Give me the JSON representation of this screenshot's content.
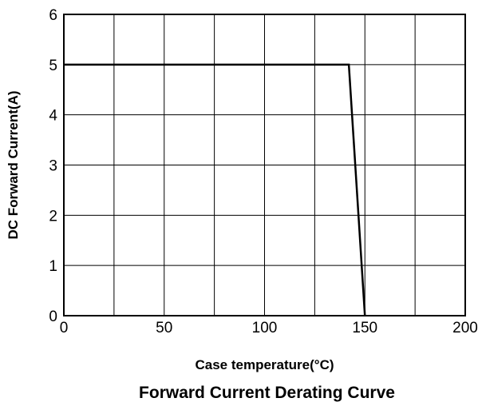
{
  "chart_data": {
    "type": "line",
    "title": "Forward Current Derating Curve",
    "xlabel": "Case temperature(°C)",
    "ylabel": "DC Forward Current(A)",
    "xlim": [
      0,
      200
    ],
    "ylim": [
      0,
      6
    ],
    "x_ticks": [
      0,
      25,
      50,
      75,
      100,
      125,
      150,
      175,
      200
    ],
    "x_tick_labels": [
      "0",
      "",
      "50",
      "",
      "100",
      "",
      "150",
      "",
      "200"
    ],
    "y_ticks": [
      0,
      1,
      2,
      3,
      4,
      5,
      6
    ],
    "y_tick_labels": [
      "0",
      "1",
      "2",
      "3",
      "4",
      "5",
      "6"
    ],
    "grid": true,
    "series": [
      {
        "x": [
          0,
          142,
          150
        ],
        "y": [
          5,
          5,
          0
        ]
      }
    ]
  }
}
